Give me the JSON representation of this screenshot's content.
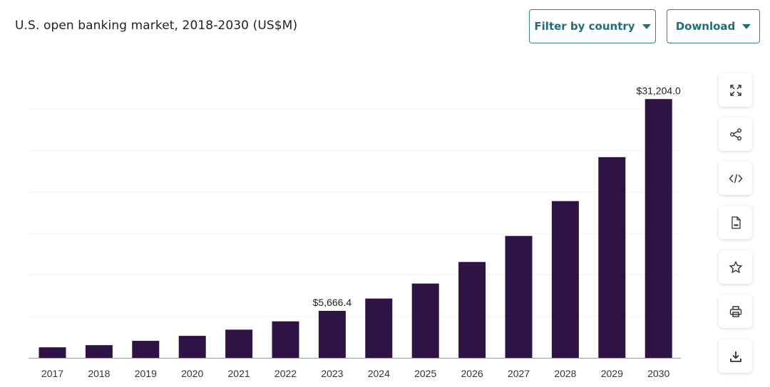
{
  "header": {
    "title": "U.S. open banking market, 2018-2030 (US$M)",
    "filter_label": "Filter by country",
    "download_label": "Download"
  },
  "side_tools": [
    {
      "name": "expand-icon"
    },
    {
      "name": "share-icon"
    },
    {
      "name": "embed-code-icon"
    },
    {
      "name": "xls-file-icon"
    },
    {
      "name": "star-icon"
    },
    {
      "name": "print-icon"
    },
    {
      "name": "download-icon"
    }
  ],
  "colors": {
    "bar": "#2d1346",
    "accent": "#1e6f7c"
  },
  "chart_data": {
    "type": "bar",
    "title": "U.S. open banking market, 2018-2030 (US$M)",
    "xlabel": "",
    "ylabel": "",
    "categories": [
      "2017",
      "2018",
      "2019",
      "2020",
      "2021",
      "2022",
      "2023",
      "2024",
      "2025",
      "2026",
      "2027",
      "2028",
      "2029",
      "2030"
    ],
    "values": [
      1270,
      1530,
      2050,
      2650,
      3400,
      4400,
      5666.4,
      7150,
      8960,
      11560,
      14700,
      18900,
      24200,
      31204.0
    ],
    "data_labels": {
      "2023": "$5,666.4",
      "2030": "$31,204.0"
    },
    "ylim": [
      0,
      35000
    ],
    "grid": true,
    "legend": "none"
  }
}
